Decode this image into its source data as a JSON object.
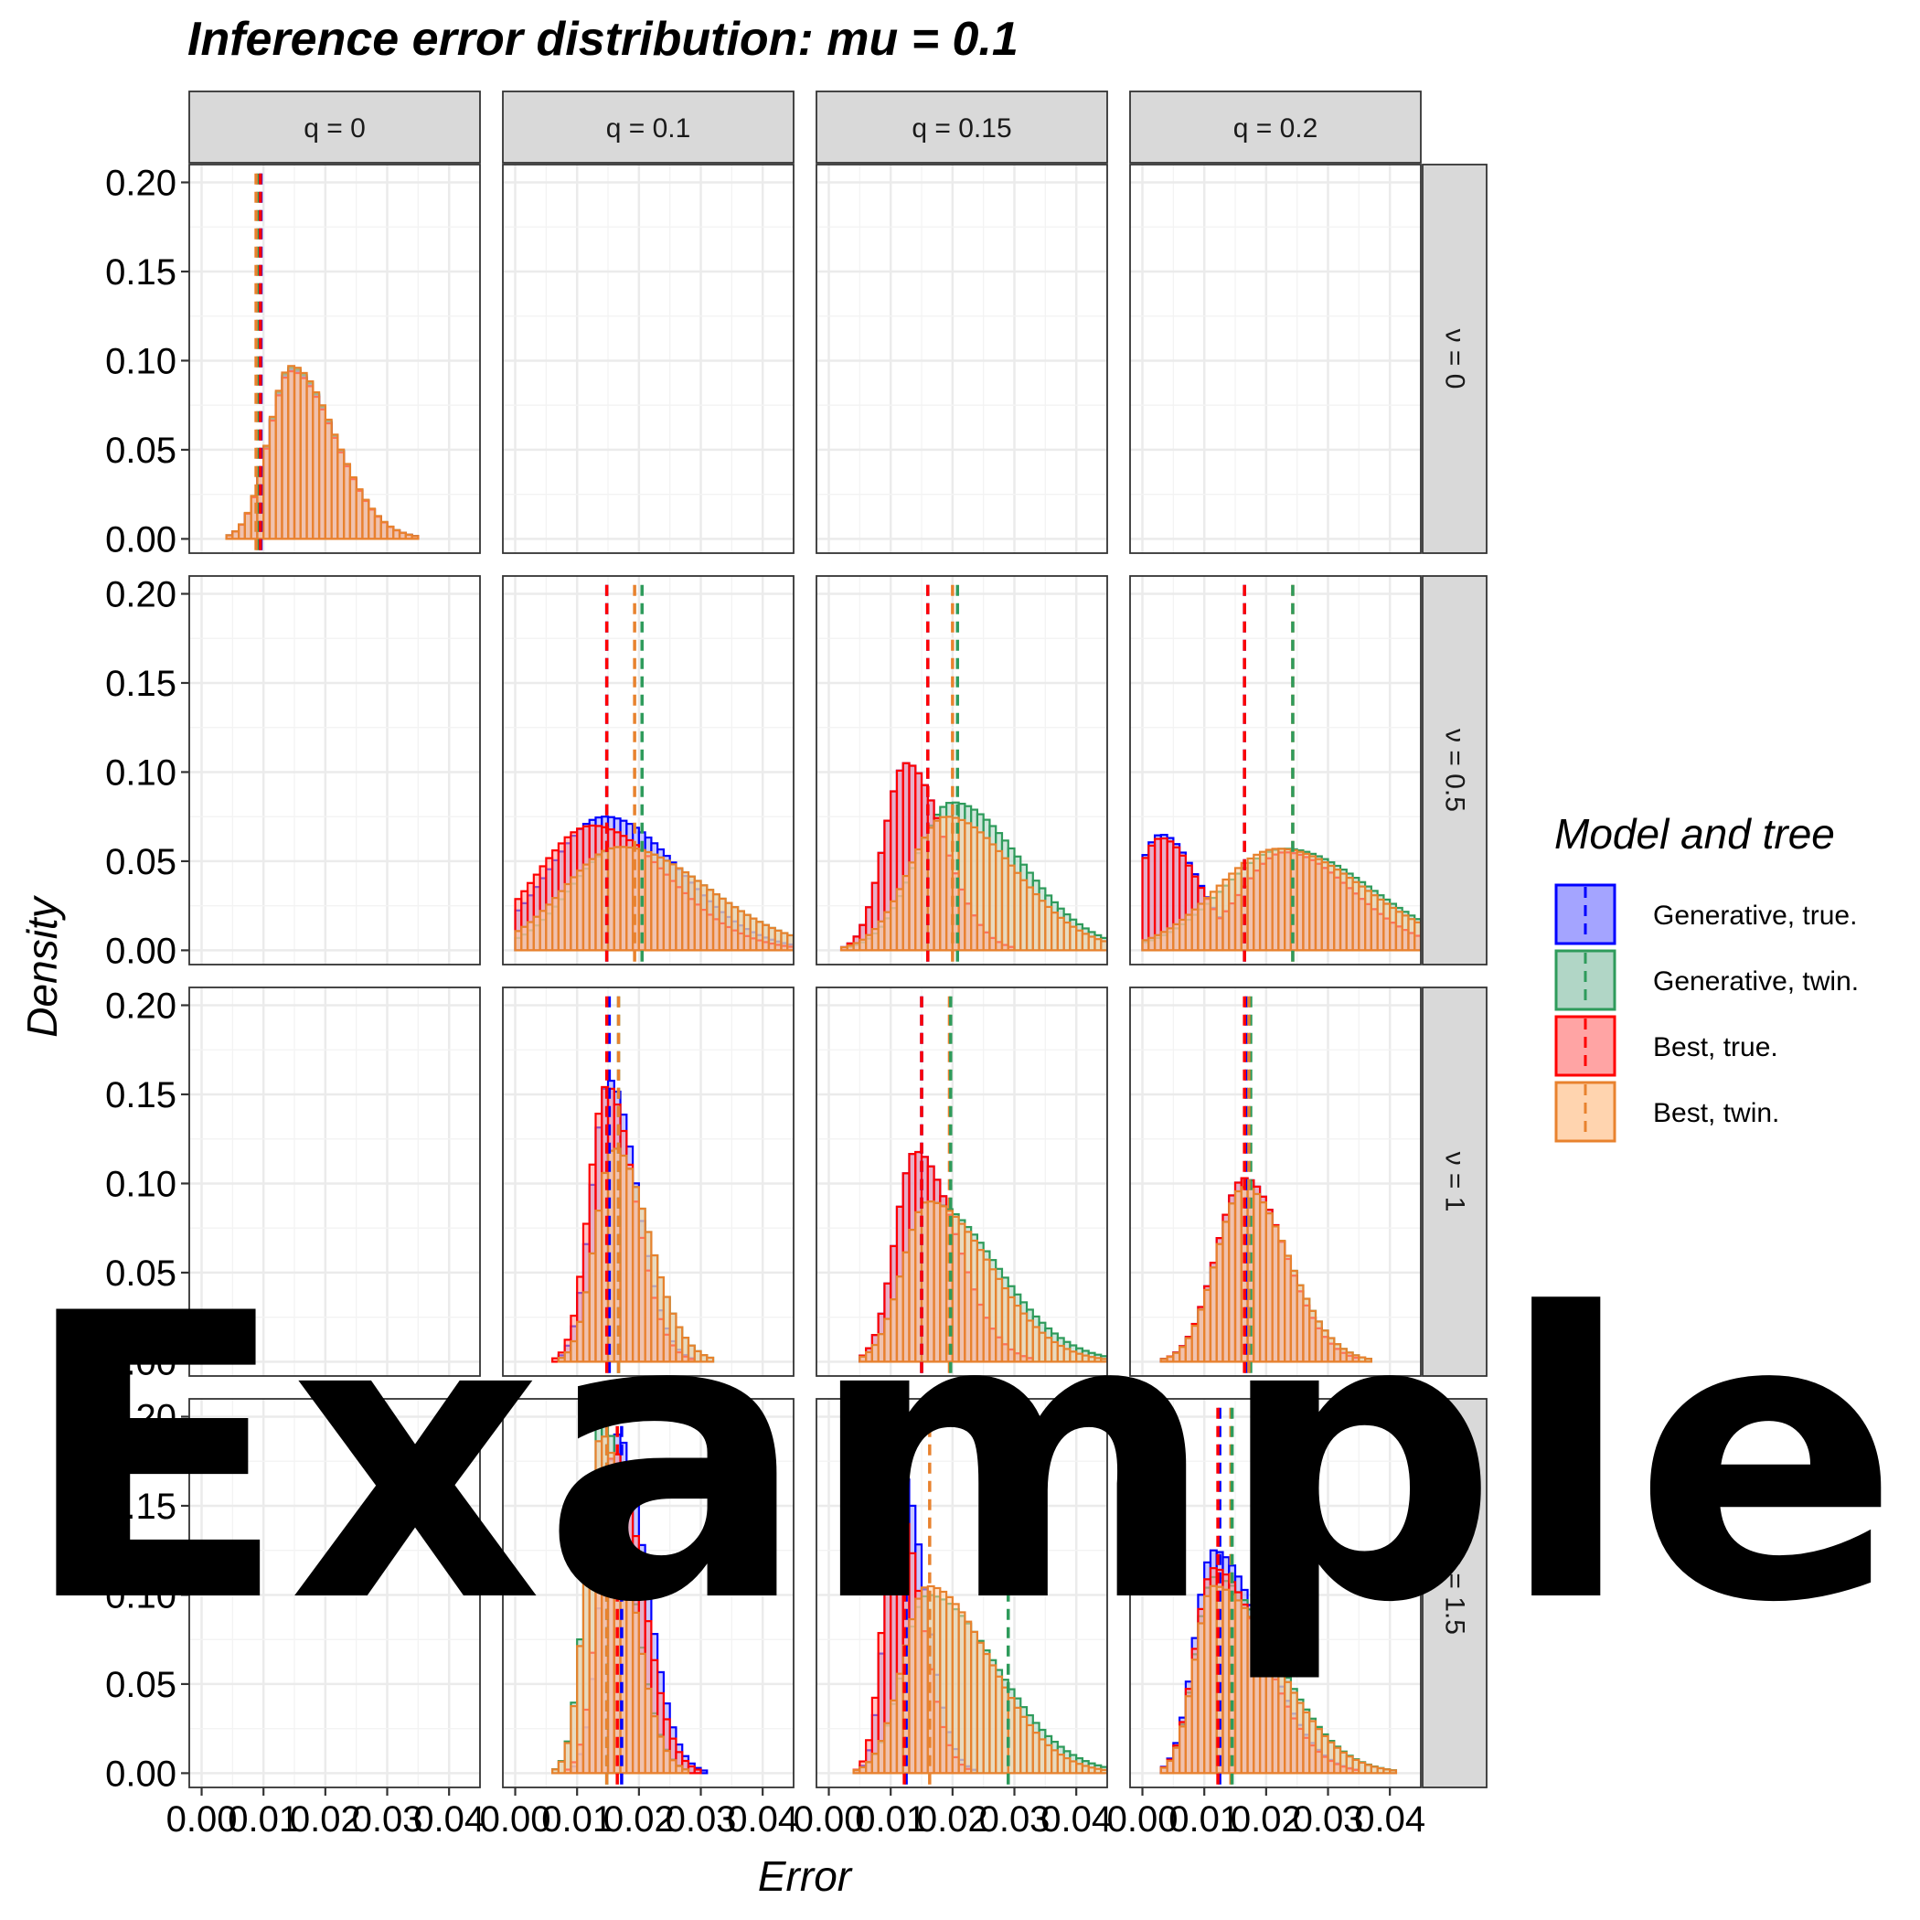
{
  "title": "Inference error distribution: mu = 0.1",
  "watermark": "Example",
  "chart_data": {
    "type": "histogram-facet-grid",
    "title": "Inference error distribution: mu = 0.1",
    "xlabel": "Error",
    "ylabel": "Density",
    "xlim": [
      -0.002,
      0.045
    ],
    "ylim": [
      -0.008,
      0.21
    ],
    "x_ticks": [
      0.0,
      0.01,
      0.02,
      0.03,
      0.04
    ],
    "x_tick_labels": [
      "0.00",
      "0.01",
      "0.02",
      "0.03",
      "0.04"
    ],
    "y_ticks": [
      0.0,
      0.05,
      0.1,
      0.15,
      0.2
    ],
    "y_tick_labels": [
      "0.00",
      "0.05",
      "0.10",
      "0.15",
      "0.20"
    ],
    "col_strips": [
      "q = 0",
      "q = 0.1",
      "q = 0.15",
      "q = 0.2"
    ],
    "row_strips": [
      "ν = 0",
      "ν = 0.5",
      "ν = 1",
      "ν = 1.5"
    ],
    "legend": {
      "title": "Model and tree",
      "position": "right",
      "items": [
        {
          "label": "Generative, true.",
          "stroke": "#0000ff",
          "fill": "#9a9aff"
        },
        {
          "label": "Generative, twin.",
          "stroke": "#2e9b5b",
          "fill": "#a8d1c0"
        },
        {
          "label": "Best, true.",
          "stroke": "#ff0000",
          "fill": "#ff9a9a"
        },
        {
          "label": "Best, twin.",
          "stroke": "#e8822e",
          "fill": "#ffcfa6"
        }
      ]
    },
    "bin_width": 0.001,
    "panels": [
      {
        "row": 0,
        "col": 0,
        "empty": false,
        "series": [
          {
            "name": "Generative, true.",
            "mean": 0.0095,
            "sd": 0.0058,
            "peak": 0.095,
            "skew": 2.8,
            "mode": 0.0145
          },
          {
            "name": "Generative, twin.",
            "mean": 0.0095,
            "sd": 0.0058,
            "peak": 0.096,
            "skew": 2.8,
            "mode": 0.0145
          },
          {
            "name": "Best, true.",
            "mean": 0.0095,
            "sd": 0.0058,
            "peak": 0.094,
            "skew": 2.8,
            "mode": 0.0145
          },
          {
            "name": "Best, twin.",
            "mean": 0.0095,
            "sd": 0.0058,
            "peak": 0.097,
            "skew": 2.8,
            "mode": 0.0145
          }
        ],
        "vlines": [
          {
            "series": "Generative, true.",
            "x": 0.0096
          },
          {
            "series": "Generative, twin.",
            "x": 0.0091
          },
          {
            "series": "Best, twin.",
            "x": 0.0088
          },
          {
            "series": "Best, true.",
            "x": 0.0095
          }
        ]
      },
      {
        "row": 0,
        "col": 1,
        "empty": true
      },
      {
        "row": 0,
        "col": 2,
        "empty": true
      },
      {
        "row": 0,
        "col": 3,
        "empty": true
      },
      {
        "row": 1,
        "col": 0,
        "empty": true
      },
      {
        "row": 1,
        "col": 1,
        "empty": false,
        "series": [
          {
            "name": "Generative, true.",
            "mode": 0.0145,
            "sd_left": 0.009,
            "sd_right": 0.012,
            "peak": 0.075
          },
          {
            "name": "Generative, twin.",
            "mode": 0.017,
            "sd_left": 0.008,
            "sd_right": 0.014,
            "peak": 0.058
          },
          {
            "name": "Best, true.",
            "mode": 0.0125,
            "sd_left": 0.009,
            "sd_right": 0.012,
            "peak": 0.07
          },
          {
            "name": "Best, twin.",
            "mode": 0.017,
            "sd_left": 0.009,
            "sd_right": 0.014,
            "peak": 0.058
          }
        ],
        "vlines": [
          {
            "series": "Generative, true.",
            "x": 0.0148
          },
          {
            "series": "Best, true.",
            "x": 0.0148
          },
          {
            "series": "Best, twin.",
            "x": 0.0193
          },
          {
            "series": "Generative, twin.",
            "x": 0.0205
          }
        ]
      },
      {
        "row": 1,
        "col": 2,
        "empty": false,
        "series": [
          {
            "name": "Generative, true.",
            "mode": 0.0125,
            "sd_left": 0.0035,
            "sd_right": 0.006,
            "peak": 0.105
          },
          {
            "name": "Generative, twin.",
            "mode": 0.02,
            "sd_left": 0.006,
            "sd_right": 0.011,
            "peak": 0.083
          },
          {
            "name": "Best, true.",
            "mode": 0.0125,
            "sd_left": 0.0035,
            "sd_right": 0.006,
            "peak": 0.105
          },
          {
            "name": "Best, twin.",
            "mode": 0.019,
            "sd_left": 0.006,
            "sd_right": 0.011,
            "peak": 0.075
          }
        ],
        "vlines": [
          {
            "series": "Generative, true.",
            "x": 0.016
          },
          {
            "series": "Best, true.",
            "x": 0.016
          },
          {
            "series": "Best, twin.",
            "x": 0.02
          },
          {
            "series": "Generative, twin.",
            "x": 0.0208
          }
        ]
      },
      {
        "row": 1,
        "col": 3,
        "empty": false,
        "series": [
          {
            "name": "Generative, true.",
            "mode": 0.003,
            "sd_left": 0.004,
            "sd_right": 0.006,
            "peak": 0.065,
            "second_mode": 0.023,
            "second_peak": 0.055
          },
          {
            "name": "Generative, twin.",
            "mode": 0.023,
            "sd_left": 0.01,
            "sd_right": 0.014,
            "peak": 0.057
          },
          {
            "name": "Best, true.",
            "mode": 0.003,
            "sd_left": 0.004,
            "sd_right": 0.006,
            "peak": 0.063,
            "second_mode": 0.023,
            "second_peak": 0.055
          },
          {
            "name": "Best, twin.",
            "mode": 0.022,
            "sd_left": 0.01,
            "sd_right": 0.014,
            "peak": 0.057
          }
        ],
        "vlines": [
          {
            "series": "Generative, true.",
            "x": 0.0165
          },
          {
            "series": "Best, true.",
            "x": 0.0165
          },
          {
            "series": "Best, twin.",
            "x": 0.0243
          },
          {
            "series": "Generative, twin.",
            "x": 0.0243
          }
        ]
      },
      {
        "row": 2,
        "col": 0,
        "empty": true
      },
      {
        "row": 2,
        "col": 1,
        "empty": false,
        "series": [
          {
            "name": "Generative, true.",
            "mode": 0.0152,
            "sd_left": 0.0028,
            "sd_right": 0.0045,
            "peak": 0.158
          },
          {
            "name": "Generative, twin.",
            "mode": 0.016,
            "sd_left": 0.003,
            "sd_right": 0.0055,
            "peak": 0.12
          },
          {
            "name": "Best, true.",
            "mode": 0.0148,
            "sd_left": 0.0028,
            "sd_right": 0.0045,
            "peak": 0.155
          },
          {
            "name": "Best, twin.",
            "mode": 0.016,
            "sd_left": 0.003,
            "sd_right": 0.0055,
            "peak": 0.12
          }
        ],
        "vlines": [
          {
            "series": "Generative, true.",
            "x": 0.0152
          },
          {
            "series": "Best, true.",
            "x": 0.0148
          },
          {
            "series": "Generative, twin.",
            "x": 0.0167
          },
          {
            "series": "Best, twin.",
            "x": 0.0167
          }
        ]
      },
      {
        "row": 2,
        "col": 2,
        "empty": false,
        "series": [
          {
            "name": "Generative, true.",
            "mode": 0.014,
            "sd_left": 0.0032,
            "sd_right": 0.0065,
            "peak": 0.118
          },
          {
            "name": "Generative, twin.",
            "mode": 0.016,
            "sd_left": 0.004,
            "sd_right": 0.011,
            "peak": 0.09
          },
          {
            "name": "Best, true.",
            "mode": 0.014,
            "sd_left": 0.0032,
            "sd_right": 0.0065,
            "peak": 0.118
          },
          {
            "name": "Best, twin.",
            "mode": 0.016,
            "sd_left": 0.004,
            "sd_right": 0.01,
            "peak": 0.09
          }
        ],
        "vlines": [
          {
            "series": "Generative, true.",
            "x": 0.015
          },
          {
            "series": "Best, true.",
            "x": 0.015
          },
          {
            "series": "Best, twin.",
            "x": 0.0195
          },
          {
            "series": "Generative, twin.",
            "x": 0.0197
          }
        ]
      },
      {
        "row": 2,
        "col": 3,
        "empty": false,
        "series": [
          {
            "name": "Generative, true.",
            "mode": 0.0165,
            "sd_left": 0.0045,
            "sd_right": 0.0065,
            "peak": 0.103
          },
          {
            "name": "Generative, twin.",
            "mode": 0.0165,
            "sd_left": 0.0045,
            "sd_right": 0.007,
            "peak": 0.098
          },
          {
            "name": "Best, true.",
            "mode": 0.0165,
            "sd_left": 0.0045,
            "sd_right": 0.0065,
            "peak": 0.103
          },
          {
            "name": "Best, twin.",
            "mode": 0.0165,
            "sd_left": 0.0045,
            "sd_right": 0.007,
            "peak": 0.098
          }
        ],
        "vlines": [
          {
            "series": "Generative, true.",
            "x": 0.0168
          },
          {
            "series": "Best, true.",
            "x": 0.0165
          },
          {
            "series": "Generative, twin.",
            "x": 0.0175
          },
          {
            "series": "Best, twin.",
            "x": 0.0172
          }
        ]
      },
      {
        "row": 3,
        "col": 0,
        "empty": true
      },
      {
        "row": 3,
        "col": 1,
        "empty": false,
        "series": [
          {
            "name": "Generative, true.",
            "mode": 0.0165,
            "sd_left": 0.0025,
            "sd_right": 0.0045,
            "peak": 0.19
          },
          {
            "name": "Generative, twin.",
            "mode": 0.014,
            "sd_left": 0.0025,
            "sd_right": 0.0045,
            "peak": 0.2
          },
          {
            "name": "Best, true.",
            "mode": 0.016,
            "sd_left": 0.0025,
            "sd_right": 0.0045,
            "peak": 0.18
          },
          {
            "name": "Best, twin.",
            "mode": 0.014,
            "sd_left": 0.0025,
            "sd_right": 0.0045,
            "peak": 0.19
          }
        ],
        "vlines": [
          {
            "series": "Generative, true.",
            "x": 0.0172
          },
          {
            "series": "Best, true.",
            "x": 0.0165
          },
          {
            "series": "Generative, twin.",
            "x": 0.0148
          },
          {
            "series": "Best, twin.",
            "x": 0.0148
          }
        ]
      },
      {
        "row": 3,
        "col": 2,
        "empty": false,
        "series": [
          {
            "name": "Generative, true.",
            "mode": 0.0115,
            "sd_left": 0.0022,
            "sd_right": 0.004,
            "peak": 0.17
          },
          {
            "name": "Generative, twin.",
            "mode": 0.016,
            "sd_left": 0.004,
            "sd_right": 0.011,
            "peak": 0.1
          },
          {
            "name": "Best, true.",
            "mode": 0.011,
            "sd_left": 0.0022,
            "sd_right": 0.004,
            "peak": 0.15
          },
          {
            "name": "Best, twin.",
            "mode": 0.016,
            "sd_left": 0.004,
            "sd_right": 0.01,
            "peak": 0.105
          }
        ],
        "vlines": [
          {
            "series": "Generative, true.",
            "x": 0.0125
          },
          {
            "series": "Best, true.",
            "x": 0.0122
          },
          {
            "series": "Best, twin.",
            "x": 0.0163
          },
          {
            "series": "Generative, twin.",
            "x": 0.029
          }
        ]
      },
      {
        "row": 3,
        "col": 3,
        "empty": false,
        "series": [
          {
            "name": "Generative, true.",
            "mode": 0.0115,
            "sd_left": 0.003,
            "sd_right": 0.008,
            "peak": 0.125
          },
          {
            "name": "Generative, twin.",
            "mode": 0.0115,
            "sd_left": 0.003,
            "sd_right": 0.01,
            "peak": 0.11
          },
          {
            "name": "Best, true.",
            "mode": 0.0115,
            "sd_left": 0.003,
            "sd_right": 0.008,
            "peak": 0.115
          },
          {
            "name": "Best, twin.",
            "mode": 0.0115,
            "sd_left": 0.003,
            "sd_right": 0.01,
            "peak": 0.105
          }
        ],
        "vlines": [
          {
            "series": "Generative, true.",
            "x": 0.0125
          },
          {
            "series": "Best, true.",
            "x": 0.0122
          },
          {
            "series": "Best, twin.",
            "x": 0.0143
          },
          {
            "series": "Generative, twin.",
            "x": 0.0145
          }
        ]
      }
    ]
  }
}
